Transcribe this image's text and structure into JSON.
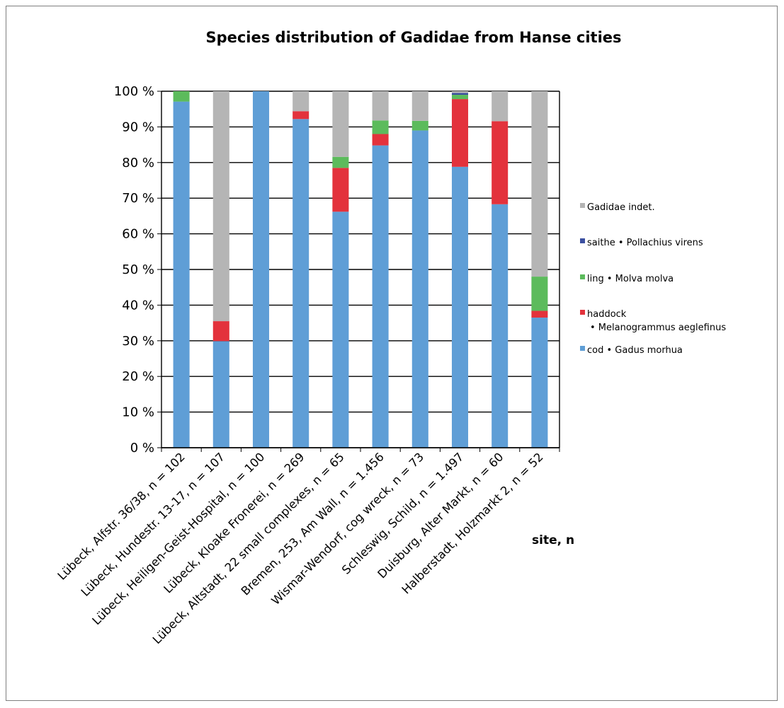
{
  "chart_data": {
    "type": "bar",
    "stacked": true,
    "percent": true,
    "title": "Species distribution of Gadidae from Hanse cities",
    "xlabel": "site, n",
    "ylabel": "",
    "ylim": [
      0,
      100
    ],
    "yticks": [
      "0 %",
      "10 %",
      "20 %",
      "30 %",
      "40 %",
      "50 %",
      "60 %",
      "70 %",
      "80 %",
      "90 %",
      "100 %"
    ],
    "grid": true,
    "legend_position": "right",
    "categories": [
      "Lübeck, Alfstr. 36/38, n = 102",
      "Lübeck, Hundestr. 13-17, n = 107",
      "Lübeck, Heiligen-Geist-Hospital, n = 100",
      "Lübeck, Kloake Fronerei, n = 269",
      "Lübeck, Altstadt, 22 small complexes, n = 65",
      "Bremen, 253, Am Wall, n = 1.456",
      "Wismar-Wendorf, cog wreck, n = 73",
      "Schleswig, Schild, n = 1.497",
      "Duisburg, Alter Markt, n = 60",
      "Halberstadt, Holzmarkt 2, n = 52"
    ],
    "series": [
      {
        "name": "cod • Gadus morhua",
        "color": "#5f9ed6",
        "values": [
          97.1,
          29.9,
          100,
          92.2,
          66.2,
          84.8,
          89.0,
          78.8,
          68.3,
          36.5
        ]
      },
      {
        "name": "haddock • Melanogrammus aeglefinus",
        "color": "#e3323c",
        "values": [
          0,
          5.6,
          0,
          2.2,
          12.3,
          3.2,
          0,
          19.0,
          23.3,
          1.9
        ]
      },
      {
        "name": "ling • Molva molva",
        "color": "#5cbb5c",
        "values": [
          2.9,
          0,
          0,
          0,
          3.1,
          3.8,
          2.7,
          1.2,
          0,
          9.6
        ]
      },
      {
        "name": "saithe • Pollachius virens",
        "color": "#3b4fa0",
        "values": [
          0,
          0,
          0,
          0,
          0,
          0,
          0,
          0.5,
          0,
          0
        ]
      },
      {
        "name": "Gadidae indet.",
        "color": "#b5b5b5",
        "values": [
          0,
          64.5,
          0,
          5.6,
          18.4,
          8.2,
          8.3,
          0.5,
          8.4,
          52.0
        ]
      }
    ],
    "legend": [
      {
        "lines": [
          "Gadidae indet."
        ],
        "color": "#b5b5b5"
      },
      {
        "lines": [
          "saithe • Pollachius virens"
        ],
        "color": "#3b4fa0"
      },
      {
        "lines": [
          "ling • Molva molva"
        ],
        "color": "#5cbb5c"
      },
      {
        "lines": [
          "haddock",
          "• Melanogrammus aeglefinus"
        ],
        "color": "#e3323c"
      },
      {
        "lines": [
          "cod • Gadus morhua"
        ],
        "color": "#5f9ed6"
      }
    ]
  }
}
